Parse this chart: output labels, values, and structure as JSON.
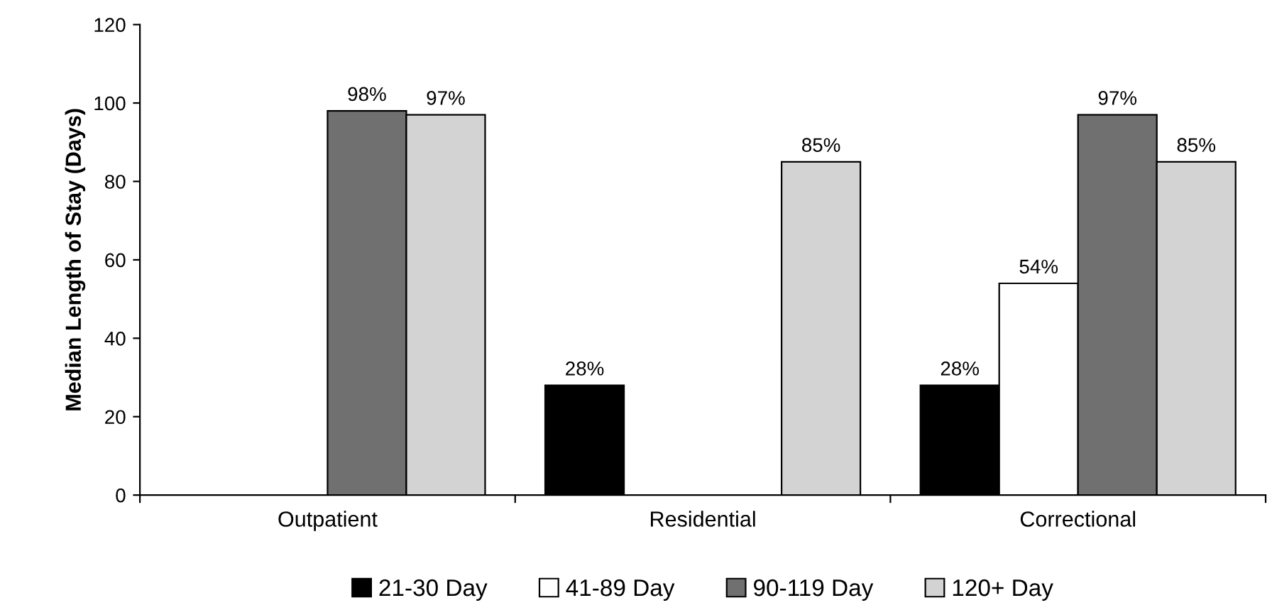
{
  "chart_data": {
    "type": "bar",
    "ylabel": "Median Length of Stay (Days)",
    "categories": [
      "Outpatient",
      "Residential",
      "Correctional"
    ],
    "series": [
      {
        "name": "21-30 Day",
        "color": "#000000",
        "values": [
          null,
          28,
          28
        ],
        "value_labels": [
          null,
          "28%",
          "28%"
        ]
      },
      {
        "name": "41-89 Day",
        "color": "#ffffff",
        "values": [
          null,
          null,
          54
        ],
        "value_labels": [
          null,
          null,
          "54%"
        ]
      },
      {
        "name": "90-119 Day",
        "color": "#707070",
        "values": [
          98,
          null,
          97
        ],
        "value_labels": [
          "98%",
          null,
          "97%"
        ]
      },
      {
        "name": "120+ Day",
        "color": "#d3d3d3",
        "values": [
          97,
          85,
          85
        ],
        "value_labels": [
          "97%",
          "85%",
          "85%"
        ]
      }
    ],
    "ylim": [
      0,
      120
    ],
    "yticks": [
      0,
      20,
      40,
      60,
      80,
      100,
      120
    ],
    "grid": false,
    "legend": "bottom"
  }
}
